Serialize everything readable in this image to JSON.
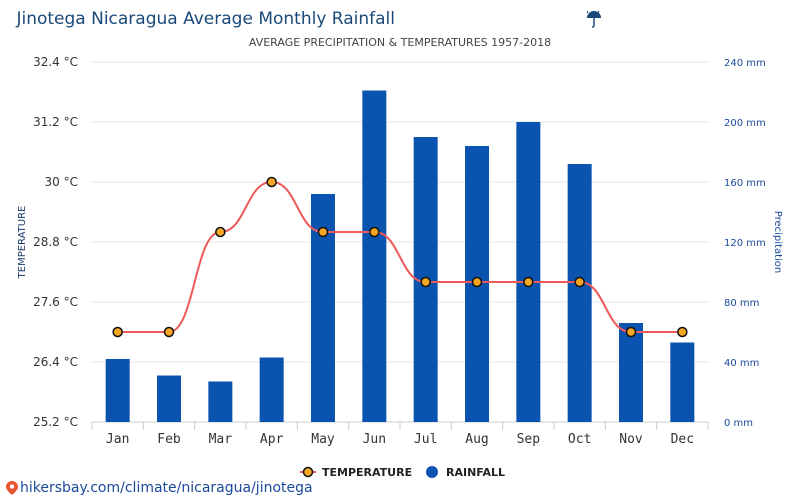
{
  "chart_data": {
    "type": "bar+line",
    "title": "Jinotega Nicaragua Average Monthly Rainfall",
    "title_icon": "umbrella-rain-icon",
    "subtitle": "AVERAGE PRECIPITATION & TEMPERATURES 1957-2018",
    "categories": [
      "Jan",
      "Feb",
      "Mar",
      "Apr",
      "May",
      "Jun",
      "Jul",
      "Aug",
      "Sep",
      "Oct",
      "Nov",
      "Dec"
    ],
    "left_axis": {
      "label": "TEMPERATURE",
      "ticks": [
        "32.4 °C",
        "31.2 °C",
        "30 °C",
        "28.8 °C",
        "27.6 °C",
        "26.4 °C",
        "25.2 °C"
      ],
      "ylim": [
        25.2,
        32.4
      ]
    },
    "right_axis": {
      "label": "Precipitation",
      "ticks": [
        "240 mm",
        "200 mm",
        "160 mm",
        "120 mm",
        "80 mm",
        "40 mm",
        "0 mm"
      ],
      "ylim": [
        0,
        240
      ]
    },
    "series": [
      {
        "name": "RAINFALL",
        "kind": "bar",
        "axis": "right",
        "color": "#0a54b0",
        "values": [
          42,
          31,
          27,
          43,
          152,
          221,
          190,
          184,
          200,
          172,
          66,
          53
        ]
      },
      {
        "name": "TEMPERATURE",
        "kind": "line",
        "axis": "left",
        "color": "#ee5a5a",
        "marker_fill": "#f5a623",
        "values": [
          27.0,
          27.0,
          29.0,
          30.0,
          29.0,
          29.0,
          28.0,
          28.0,
          28.0,
          28.0,
          27.0,
          27.0
        ]
      }
    ],
    "grid": true,
    "legend_position": "bottom-center"
  },
  "footer": {
    "text": "hikersbay.com/climate/nicaragua/jinotega"
  }
}
